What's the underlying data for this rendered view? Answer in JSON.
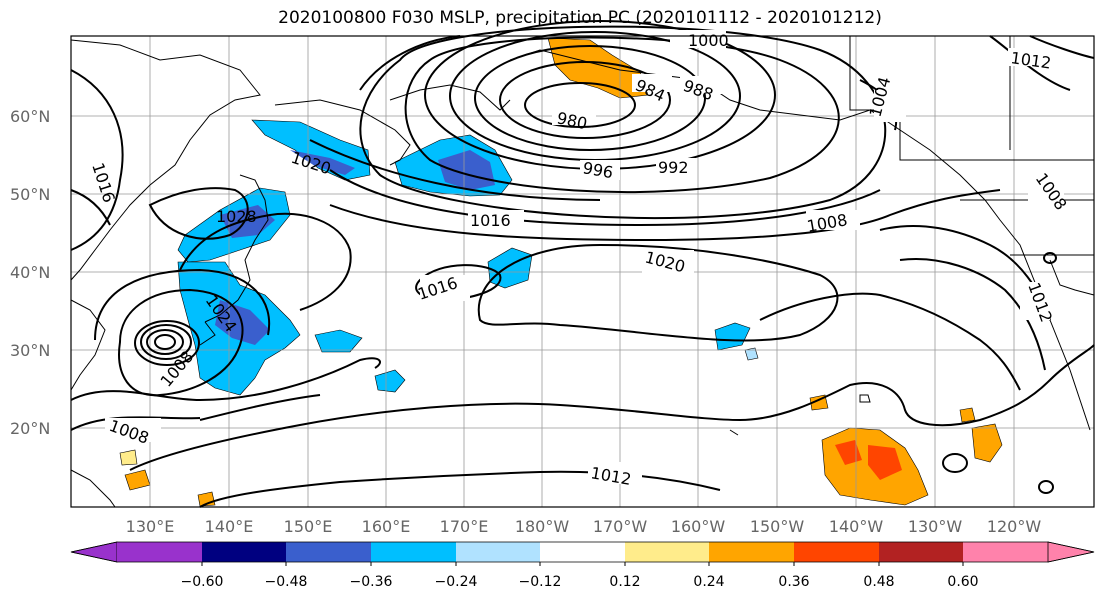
{
  "title": "2020100800 F030 MSLP, precipitation PC (2020101112 - 2020101212)",
  "lat_labels": [
    "60°N",
    "50°N",
    "40°N",
    "30°N",
    "20°N"
  ],
  "lon_labels": [
    "130°E",
    "140°E",
    "150°E",
    "160°E",
    "170°E",
    "180°W",
    "170°W",
    "160°W",
    "150°W",
    "140°W",
    "130°W",
    "120°W"
  ],
  "isobar_labels": [
    "1000",
    "980",
    "984",
    "988",
    "992",
    "996",
    "1004",
    "1012",
    "1016",
    "1008",
    "1020",
    "1028",
    "1016",
    "1024",
    "1008",
    "1008",
    "1012",
    "1012",
    "1008",
    "1020",
    "1016"
  ],
  "colorbar": {
    "colors": [
      "#9932cc",
      "#000080",
      "#3a5fcd",
      "#00bfff",
      "#b0e2ff",
      "#ffffff",
      "#ffec8b",
      "#ffa500",
      "#ff4500",
      "#b22222",
      "#ff82ab"
    ],
    "tick_labels": [
      "−0.60",
      "−0.48",
      "−0.36",
      "−0.24",
      "−0.12",
      "0.12",
      "0.24",
      "0.36",
      "0.48",
      "0.60"
    ]
  },
  "palette": {
    "neg": "#00bfff",
    "neg_dark": "#3a5fcd",
    "pos": "#ffa500",
    "pos_dark": "#ff4500",
    "grid": "#999999"
  }
}
